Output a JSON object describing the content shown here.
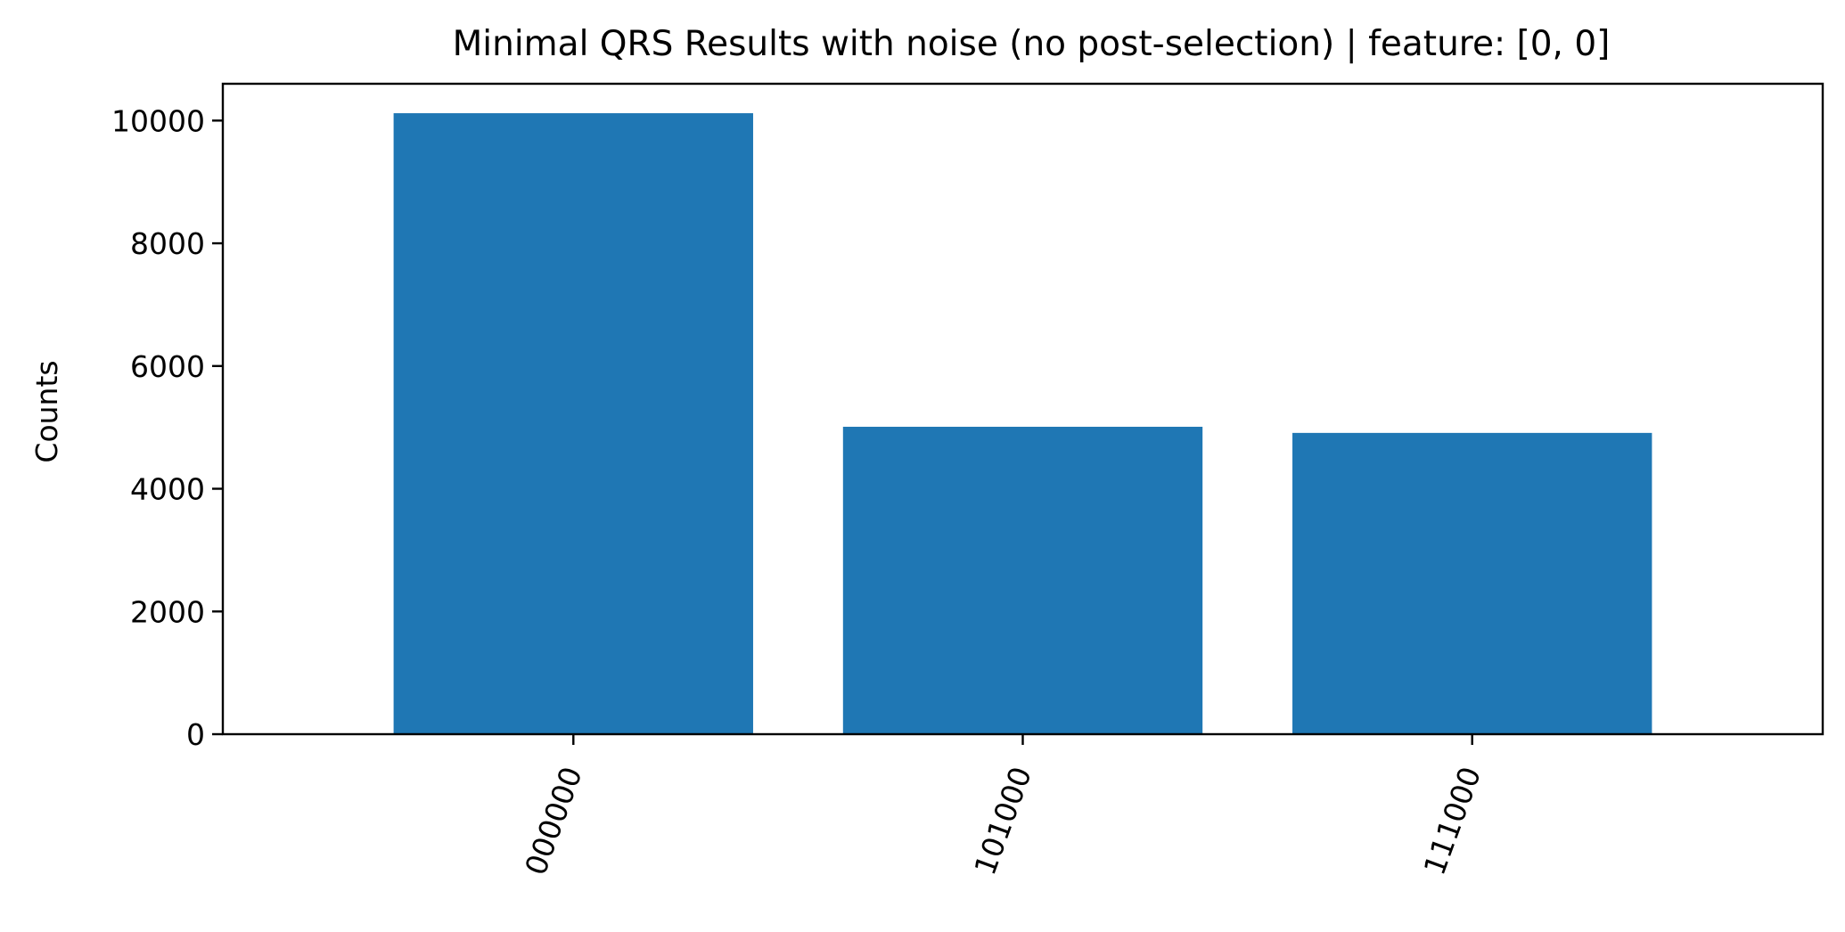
{
  "chart_data": {
    "type": "bar",
    "title": "Minimal QRS Results with noise (no post-selection) | feature: [0, 0]",
    "xlabel": "",
    "ylabel": "Counts",
    "categories": [
      "000000",
      "101000",
      "111000"
    ],
    "values": [
      10120,
      5010,
      4910
    ],
    "ylim": [
      0,
      10600
    ],
    "yticks": [
      0,
      2000,
      4000,
      6000,
      8000,
      10000
    ],
    "bar_color": "#1f77b4",
    "grid": false,
    "legend": "none"
  }
}
